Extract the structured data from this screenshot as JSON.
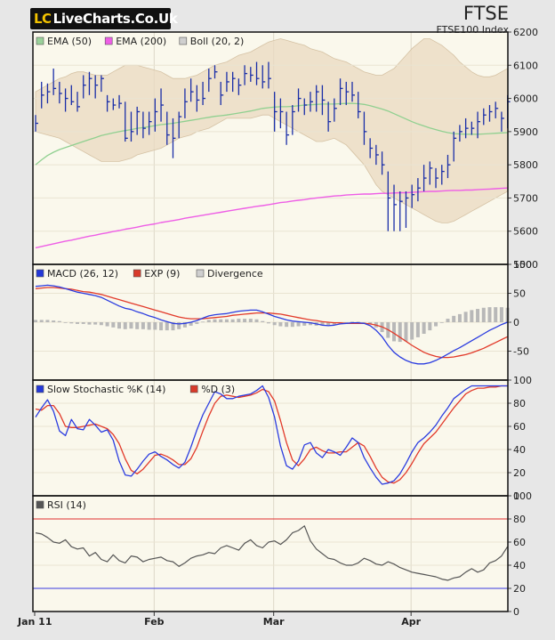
{
  "brand": {
    "lc": "LC",
    "name": "LiveCharts.Co.Uk"
  },
  "header": {
    "ticker": "FTSE",
    "subtitle": "FTSE100 Index"
  },
  "colors": {
    "price_bar": "#1a2ea8",
    "ema50": "#90d090",
    "ema200": "#ee5ee6",
    "boll_band": "#ead9c0",
    "macd": "#2b3ce0",
    "exp": "#e23a2a",
    "divergence": "#b8b8b8",
    "stoch_k": "#2b3ce0",
    "stoch_d": "#e23a2a",
    "rsi": "#555555",
    "rsi_upper": "#e03030",
    "rsi_lower": "#3a3ae0",
    "panel_bg": "#faf8ec"
  },
  "chart_data": [
    {
      "type": "ohlc",
      "panel": "price",
      "legend": [
        "EMA (50)",
        "EMA (200)",
        "Boll (20, 2)"
      ],
      "ylim": [
        5500,
        6200
      ],
      "yticks": [
        5500,
        5600,
        5700,
        5800,
        5900,
        6000,
        6100,
        6200
      ],
      "x_labels": [
        "Jan 11",
        "Feb",
        "Mar",
        "Apr"
      ],
      "x_label_index": [
        0,
        20,
        40,
        63
      ],
      "bars": [
        {
          "h": 5950,
          "l": 5900,
          "c": 5925
        },
        {
          "h": 6050,
          "l": 5970,
          "c": 6010
        },
        {
          "h": 6045,
          "l": 5985,
          "c": 6020
        },
        {
          "h": 6090,
          "l": 6010,
          "c": 6030
        },
        {
          "h": 6050,
          "l": 5985,
          "c": 6015
        },
        {
          "h": 6030,
          "l": 5960,
          "c": 6000
        },
        {
          "h": 6040,
          "l": 5980,
          "c": 5990
        },
        {
          "h": 6020,
          "l": 5960,
          "c": 5975
        },
        {
          "h": 6070,
          "l": 6000,
          "c": 6040
        },
        {
          "h": 6080,
          "l": 6010,
          "c": 6060
        },
        {
          "h": 6070,
          "l": 6000,
          "c": 6040
        },
        {
          "h": 6070,
          "l": 6020,
          "c": 6060
        },
        {
          "h": 6010,
          "l": 5960,
          "c": 5990
        },
        {
          "h": 6000,
          "l": 5965,
          "c": 5980
        },
        {
          "h": 6010,
          "l": 5970,
          "c": 5985
        },
        {
          "h": 5990,
          "l": 5870,
          "c": 5880
        },
        {
          "h": 5960,
          "l": 5870,
          "c": 5900
        },
        {
          "h": 5975,
          "l": 5890,
          "c": 5960
        },
        {
          "h": 5960,
          "l": 5880,
          "c": 5910
        },
        {
          "h": 5960,
          "l": 5890,
          "c": 5930
        },
        {
          "h": 6000,
          "l": 5900,
          "c": 5960
        },
        {
          "h": 6030,
          "l": 5930,
          "c": 5980
        },
        {
          "h": 5960,
          "l": 5860,
          "c": 5890
        },
        {
          "h": 5940,
          "l": 5820,
          "c": 5880
        },
        {
          "h": 5960,
          "l": 5880,
          "c": 5945
        },
        {
          "h": 6030,
          "l": 5940,
          "c": 5990
        },
        {
          "h": 6060,
          "l": 5990,
          "c": 6020
        },
        {
          "h": 6040,
          "l": 5960,
          "c": 5995
        },
        {
          "h": 6050,
          "l": 5980,
          "c": 6000
        },
        {
          "h": 6090,
          "l": 6020,
          "c": 6060
        },
        {
          "h": 6100,
          "l": 6060,
          "c": 6080
        },
        {
          "h": 6050,
          "l": 5980,
          "c": 6010
        },
        {
          "h": 6080,
          "l": 6020,
          "c": 6050
        },
        {
          "h": 6080,
          "l": 6020,
          "c": 6060
        },
        {
          "h": 6060,
          "l": 6010,
          "c": 6040
        },
        {
          "h": 6100,
          "l": 6040,
          "c": 6075
        },
        {
          "h": 6095,
          "l": 6050,
          "c": 6070
        },
        {
          "h": 6110,
          "l": 6040,
          "c": 6060
        },
        {
          "h": 6100,
          "l": 6030,
          "c": 6050
        },
        {
          "h": 6110,
          "l": 6030,
          "c": 6060
        },
        {
          "h": 6020,
          "l": 5900,
          "c": 5960
        },
        {
          "h": 6000,
          "l": 5910,
          "c": 5960
        },
        {
          "h": 5960,
          "l": 5860,
          "c": 5890
        },
        {
          "h": 5980,
          "l": 5890,
          "c": 5960
        },
        {
          "h": 6030,
          "l": 5960,
          "c": 6000
        },
        {
          "h": 6000,
          "l": 5950,
          "c": 5980
        },
        {
          "h": 6020,
          "l": 5960,
          "c": 5990
        },
        {
          "h": 6040,
          "l": 5960,
          "c": 6020
        },
        {
          "h": 6040,
          "l": 5950,
          "c": 5995
        },
        {
          "h": 5990,
          "l": 5900,
          "c": 5930
        },
        {
          "h": 6000,
          "l": 5930,
          "c": 5970
        },
        {
          "h": 6060,
          "l": 5980,
          "c": 6030
        },
        {
          "h": 6050,
          "l": 5980,
          "c": 6020
        },
        {
          "h": 6050,
          "l": 5990,
          "c": 6010
        },
        {
          "h": 6020,
          "l": 5940,
          "c": 5960
        },
        {
          "h": 5960,
          "l": 5860,
          "c": 5900
        },
        {
          "h": 5880,
          "l": 5820,
          "c": 5850
        },
        {
          "h": 5860,
          "l": 5800,
          "c": 5830
        },
        {
          "h": 5840,
          "l": 5770,
          "c": 5800
        },
        {
          "h": 5780,
          "l": 5600,
          "c": 5700
        },
        {
          "h": 5740,
          "l": 5600,
          "c": 5680
        },
        {
          "h": 5720,
          "l": 5600,
          "c": 5690
        },
        {
          "h": 5720,
          "l": 5610,
          "c": 5700
        },
        {
          "h": 5740,
          "l": 5670,
          "c": 5710
        },
        {
          "h": 5760,
          "l": 5690,
          "c": 5730
        },
        {
          "h": 5800,
          "l": 5720,
          "c": 5760
        },
        {
          "h": 5810,
          "l": 5740,
          "c": 5790
        },
        {
          "h": 5790,
          "l": 5730,
          "c": 5760
        },
        {
          "h": 5800,
          "l": 5740,
          "c": 5780
        },
        {
          "h": 5830,
          "l": 5760,
          "c": 5800
        },
        {
          "h": 5900,
          "l": 5810,
          "c": 5880
        },
        {
          "h": 5920,
          "l": 5870,
          "c": 5900
        },
        {
          "h": 5940,
          "l": 5880,
          "c": 5910
        },
        {
          "h": 5930,
          "l": 5890,
          "c": 5910
        },
        {
          "h": 5960,
          "l": 5880,
          "c": 5930
        },
        {
          "h": 5970,
          "l": 5920,
          "c": 5950
        },
        {
          "h": 5980,
          "l": 5930,
          "c": 5960
        },
        {
          "h": 5990,
          "l": 5940,
          "c": 5970
        },
        {
          "h": 5960,
          "l": 5900,
          "c": 5940
        },
        {
          "h": 6010,
          "l": 5910,
          "c": 5990
        }
      ],
      "ema50": [
        5800,
        5815,
        5828,
        5838,
        5846,
        5852,
        5858,
        5864,
        5870,
        5876,
        5882,
        5888,
        5892,
        5896,
        5900,
        5903,
        5906,
        5910,
        5912,
        5915,
        5918,
        5921,
        5923,
        5925,
        5928,
        5931,
        5934,
        5937,
        5940,
        5943,
        5946,
        5948,
        5950,
        5953,
        5956,
        5959,
        5962,
        5966,
        5970,
        5972,
        5974,
        5975,
        5975,
        5976,
        5978,
        5980,
        5981,
        5982,
        5983,
        5983,
        5983,
        5984,
        5985,
        5985,
        5984,
        5982,
        5978,
        5973,
        5968,
        5962,
        5954,
        5946,
        5938,
        5930,
        5923,
        5917,
        5911,
        5906,
        5901,
        5897,
        5894,
        5893,
        5892,
        5892,
        5892,
        5893,
        5894,
        5895,
        5896,
        5897
      ],
      "ema200": [
        5550,
        5554,
        5558,
        5562,
        5566,
        5570,
        5573,
        5577,
        5581,
        5585,
        5588,
        5592,
        5595,
        5599,
        5602,
        5606,
        5609,
        5612,
        5616,
        5619,
        5622,
        5626,
        5629,
        5632,
        5635,
        5639,
        5642,
        5645,
        5648,
        5651,
        5654,
        5657,
        5660,
        5663,
        5666,
        5669,
        5672,
        5675,
        5677,
        5680,
        5683,
        5686,
        5688,
        5691,
        5693,
        5695,
        5698,
        5700,
        5702,
        5704,
        5706,
        5707,
        5709,
        5710,
        5711,
        5712,
        5712,
        5713,
        5714,
        5714,
        5715,
        5716,
        5716,
        5717,
        5718,
        5719,
        5720,
        5720,
        5721,
        5722,
        5723,
        5723,
        5724,
        5724,
        5725,
        5726,
        5727,
        5728,
        5729,
        5730
      ],
      "boll_upper": [
        6020,
        6030,
        6040,
        6050,
        6060,
        6065,
        6075,
        6080,
        6080,
        6075,
        6070,
        6070,
        6070,
        6080,
        6090,
        6100,
        6100,
        6100,
        6095,
        6090,
        6085,
        6080,
        6070,
        6060,
        6060,
        6060,
        6065,
        6070,
        6080,
        6090,
        6100,
        6105,
        6110,
        6120,
        6130,
        6135,
        6140,
        6150,
        6160,
        6170,
        6175,
        6180,
        6175,
        6170,
        6165,
        6160,
        6150,
        6145,
        6140,
        6130,
        6120,
        6115,
        6110,
        6100,
        6090,
        6080,
        6075,
        6070,
        6070,
        6080,
        6090,
        6110,
        6130,
        6150,
        6165,
        6180,
        6180,
        6170,
        6160,
        6145,
        6130,
        6110,
        6095,
        6080,
        6070,
        6065,
        6065,
        6070,
        6080,
        6090
      ],
      "boll_lower": [
        5900,
        5895,
        5890,
        5885,
        5880,
        5870,
        5860,
        5850,
        5840,
        5830,
        5820,
        5810,
        5810,
        5810,
        5810,
        5815,
        5820,
        5830,
        5835,
        5840,
        5845,
        5850,
        5860,
        5870,
        5880,
        5885,
        5890,
        5900,
        5905,
        5910,
        5920,
        5930,
        5940,
        5940,
        5940,
        5940,
        5940,
        5945,
        5950,
        5950,
        5940,
        5930,
        5920,
        5910,
        5900,
        5890,
        5880,
        5870,
        5870,
        5875,
        5880,
        5870,
        5860,
        5840,
        5820,
        5800,
        5770,
        5740,
        5720,
        5710,
        5700,
        5690,
        5680,
        5670,
        5660,
        5650,
        5640,
        5630,
        5625,
        5625,
        5630,
        5640,
        5650,
        5660,
        5670,
        5680,
        5690,
        5700,
        5710,
        5720
      ]
    },
    {
      "type": "line",
      "panel": "macd",
      "legend": [
        "MACD (26, 12)",
        "EXP (9)",
        "Divergence"
      ],
      "ylim": [
        -100,
        100
      ],
      "yticks": [
        -50,
        0,
        50,
        100
      ],
      "macd": [
        62,
        63,
        64,
        63,
        61,
        58,
        55,
        52,
        50,
        48,
        46,
        43,
        38,
        33,
        28,
        24,
        22,
        18,
        15,
        11,
        8,
        4,
        1,
        -2,
        -3,
        -2,
        0,
        3,
        7,
        11,
        13,
        14,
        15,
        17,
        19,
        20,
        21,
        21,
        18,
        14,
        10,
        7,
        4,
        2,
        1,
        0,
        -1,
        -3,
        -5,
        -6,
        -5,
        -3,
        -2,
        -1,
        -1,
        -2,
        -6,
        -14,
        -25,
        -40,
        -52,
        -60,
        -66,
        -70,
        -72,
        -72,
        -70,
        -66,
        -61,
        -55,
        -49,
        -44,
        -38,
        -32,
        -26,
        -20,
        -14,
        -9,
        -4,
        0
      ],
      "exp": [
        58,
        59,
        60,
        60,
        59,
        58,
        57,
        55,
        53,
        52,
        50,
        48,
        45,
        42,
        39,
        36,
        33,
        30,
        27,
        24,
        21,
        18,
        15,
        12,
        9,
        7,
        6,
        6,
        6,
        7,
        8,
        9,
        10,
        12,
        13,
        14,
        15,
        16,
        16,
        16,
        15,
        14,
        12,
        10,
        8,
        6,
        4,
        3,
        1,
        0,
        -1,
        -1,
        -2,
        -2,
        -2,
        -2,
        -3,
        -5,
        -8,
        -13,
        -19,
        -26,
        -33,
        -40,
        -46,
        -52,
        -56,
        -59,
        -61,
        -61,
        -60,
        -58,
        -56,
        -53,
        -49,
        -45,
        -40,
        -35,
        -30,
        -25
      ],
      "divergence": [
        4,
        4,
        4,
        3,
        2,
        0,
        -2,
        -3,
        -3,
        -4,
        -4,
        -5,
        -7,
        -9,
        -11,
        -12,
        -11,
        -12,
        -12,
        -13,
        -13,
        -14,
        -14,
        -14,
        -12,
        -9,
        -6,
        -3,
        1,
        4,
        5,
        5,
        5,
        5,
        6,
        6,
        6,
        5,
        2,
        -2,
        -5,
        -7,
        -8,
        -8,
        -7,
        -6,
        -5,
        -6,
        -6,
        -6,
        -4,
        -2,
        0,
        1,
        1,
        0,
        -3,
        -9,
        -17,
        -27,
        -33,
        -34,
        -33,
        -30,
        -26,
        -20,
        -14,
        -7,
        0,
        6,
        11,
        14,
        18,
        21,
        23,
        25,
        26,
        26,
        26,
        25
      ]
    },
    {
      "type": "line",
      "panel": "stochastic",
      "legend": [
        "Slow Stochastic %K (14)",
        "%D (3)"
      ],
      "ylim": [
        0,
        100
      ],
      "yticks": [
        0,
        20,
        40,
        60,
        80,
        100
      ],
      "k": [
        68,
        76,
        83,
        73,
        56,
        52,
        66,
        58,
        57,
        66,
        61,
        55,
        57,
        48,
        30,
        18,
        17,
        23,
        30,
        36,
        38,
        34,
        31,
        27,
        24,
        29,
        42,
        57,
        70,
        80,
        90,
        88,
        84,
        84,
        86,
        87,
        88,
        91,
        95,
        85,
        68,
        43,
        26,
        23,
        30,
        44,
        46,
        37,
        33,
        40,
        38,
        35,
        42,
        50,
        46,
        33,
        24,
        16,
        10,
        11,
        13,
        19,
        28,
        38,
        46,
        50,
        55,
        61,
        69,
        76,
        84,
        88,
        92,
        95,
        95,
        95,
        95,
        95,
        95,
        95
      ],
      "d": [
        75,
        74,
        78,
        78,
        71,
        60,
        59,
        59,
        60,
        61,
        62,
        60,
        58,
        53,
        45,
        32,
        22,
        19,
        23,
        29,
        35,
        36,
        34,
        31,
        27,
        27,
        32,
        42,
        56,
        69,
        80,
        86,
        87,
        86,
        85,
        86,
        87,
        89,
        92,
        90,
        82,
        65,
        46,
        31,
        26,
        32,
        40,
        42,
        39,
        37,
        37,
        38,
        38,
        42,
        46,
        43,
        34,
        24,
        16,
        12,
        11,
        14,
        20,
        28,
        37,
        45,
        50,
        55,
        62,
        69,
        76,
        82,
        88,
        91,
        93,
        93,
        94,
        94,
        95,
        95
      ]
    },
    {
      "type": "line",
      "panel": "rsi",
      "legend": [
        "RSI (14)"
      ],
      "ylim": [
        0,
        100
      ],
      "yticks": [
        0,
        20,
        40,
        60,
        80,
        100
      ],
      "upper_line": 80,
      "lower_line": 20,
      "rsi": [
        68,
        67,
        64,
        60,
        59,
        62,
        56,
        54,
        55,
        48,
        51,
        45,
        43,
        49,
        44,
        42,
        48,
        47,
        43,
        45,
        46,
        47,
        44,
        43,
        39,
        42,
        46,
        48,
        49,
        51,
        50,
        55,
        57,
        55,
        53,
        59,
        62,
        57,
        55,
        60,
        61,
        58,
        62,
        68,
        70,
        74,
        61,
        54,
        50,
        46,
        45,
        42,
        40,
        40,
        42,
        46,
        44,
        41,
        40,
        43,
        41,
        38,
        36,
        34,
        33,
        32,
        31,
        30,
        28,
        27,
        29,
        30,
        34,
        37,
        34,
        36,
        42,
        44,
        48,
        56
      ]
    }
  ]
}
